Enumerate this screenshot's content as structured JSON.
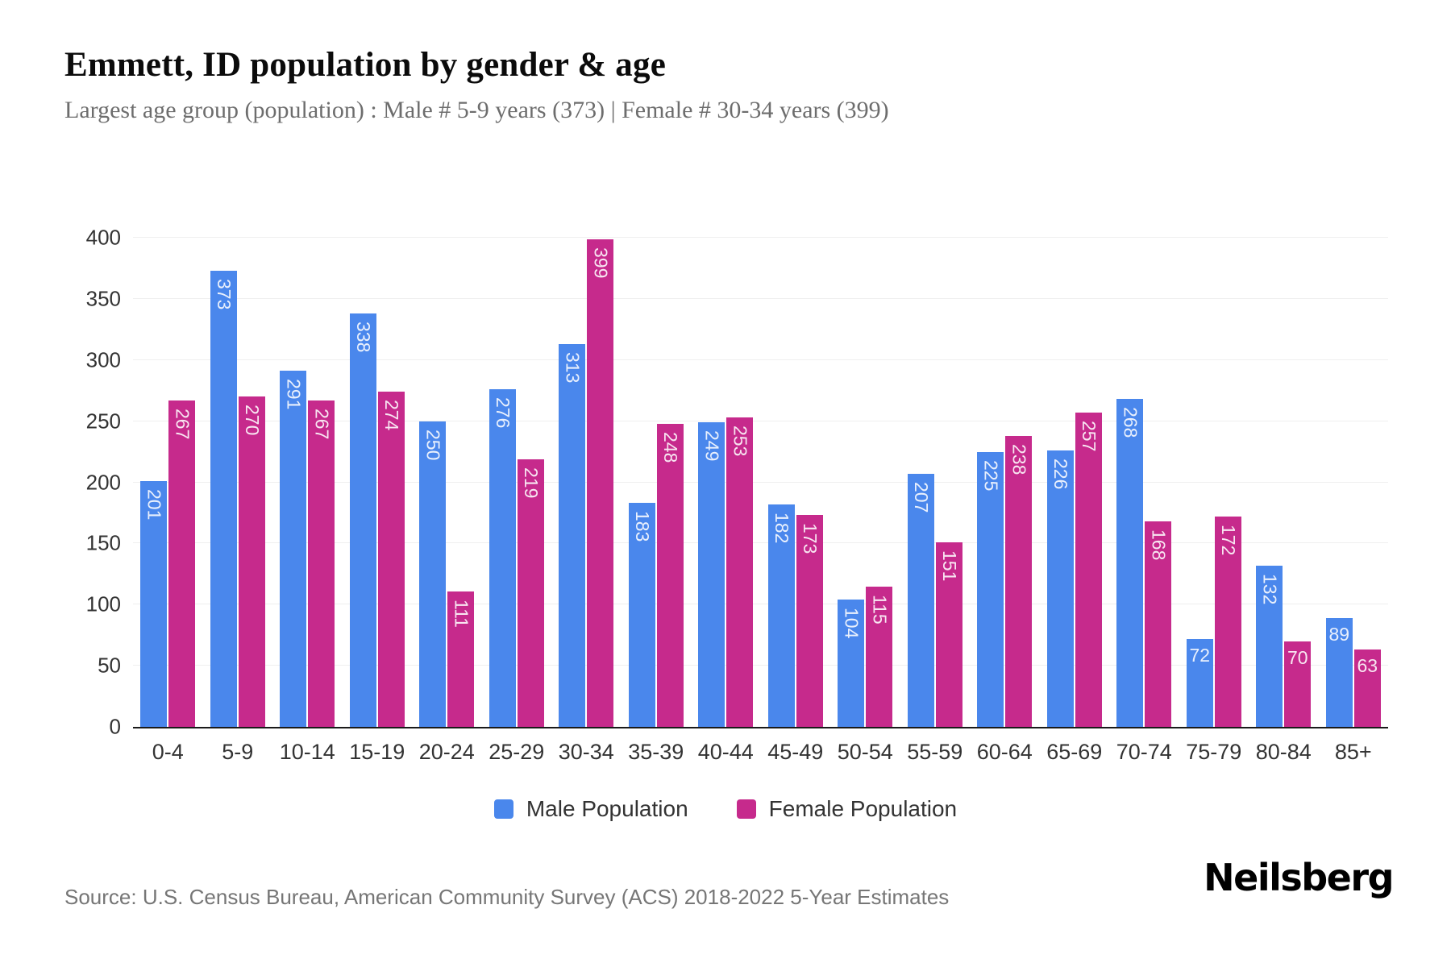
{
  "header": {
    "title": "Emmett, ID population by gender & age",
    "subtitle": "Largest age group (population) : Male # 5-9 years (373) | Female # 30-34 years (399)"
  },
  "chart_data": {
    "type": "bar",
    "title": "Emmett, ID population by gender & age",
    "subtitle": "Largest age group (population) : Male # 5-9 years (373) | Female # 30-34 years (399)",
    "categories": [
      "0-4",
      "5-9",
      "10-14",
      "15-19",
      "20-24",
      "25-29",
      "30-34",
      "35-39",
      "40-44",
      "45-49",
      "50-54",
      "55-59",
      "60-64",
      "65-69",
      "70-74",
      "75-79",
      "80-84",
      "85+"
    ],
    "series": [
      {
        "name": "Male Population",
        "color": "#4a87ec",
        "values": [
          201,
          373,
          291,
          338,
          250,
          276,
          313,
          183,
          249,
          182,
          104,
          207,
          225,
          226,
          268,
          72,
          132,
          89
        ]
      },
      {
        "name": "Female Population",
        "color": "#c62a8c",
        "values": [
          267,
          270,
          267,
          274,
          111,
          219,
          399,
          248,
          253,
          173,
          115,
          151,
          238,
          257,
          168,
          172,
          70,
          63
        ]
      }
    ],
    "xlabel": "",
    "ylabel": "",
    "ylim": [
      0,
      400
    ],
    "yticks": [
      0,
      50,
      100,
      150,
      200,
      250,
      300,
      350,
      400
    ],
    "grid": true,
    "gridline_color": "#efefef",
    "axis_line_color": "#1a1a1a",
    "tick_label_color": "#333333",
    "bar_value_label_color": "#ffffff",
    "legend_position": "bottom"
  },
  "footer": {
    "source": "Source: U.S. Census Bureau, American Community Survey (ACS) 2018-2022 5-Year Estimates",
    "logo": "Neilsberg"
  }
}
